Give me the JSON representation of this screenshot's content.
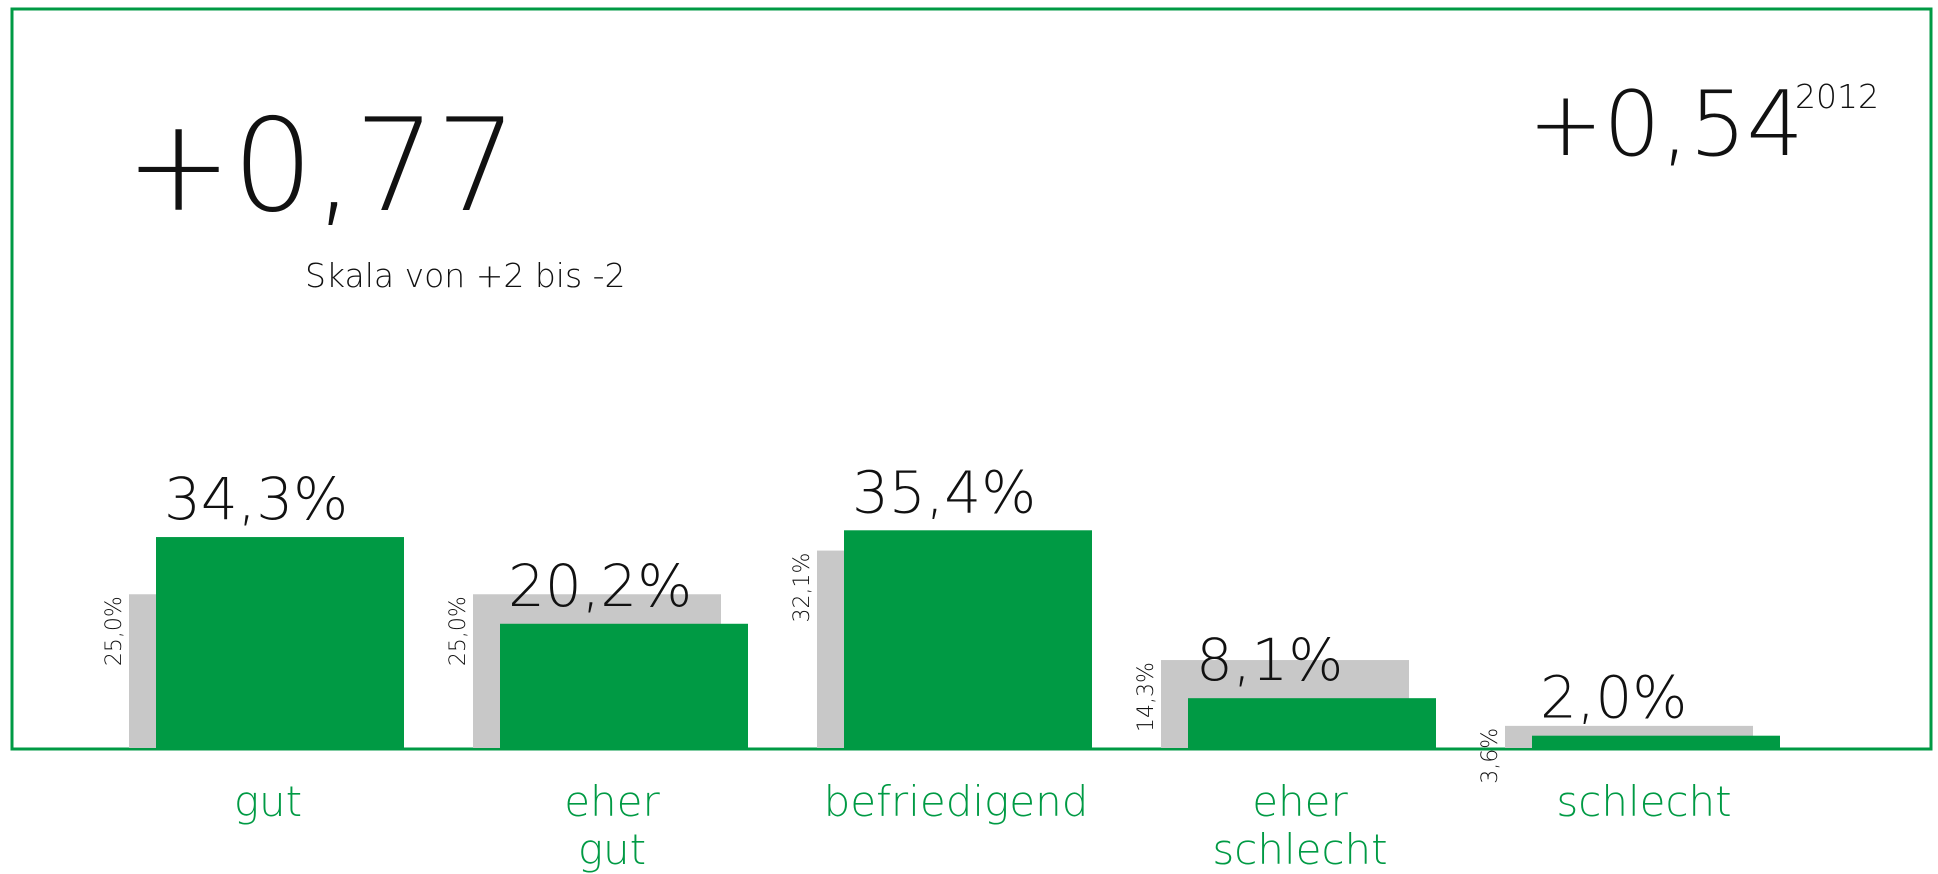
{
  "chart_data": {
    "type": "bar",
    "score": "+0,77",
    "subtitle": "Skala von +2 bis -2",
    "previous_score": "+0,54",
    "categories": [
      "gut",
      "eher gut",
      "befriedigend",
      "eher schlecht",
      "schlecht"
    ],
    "series": [
      {
        "name": "2012",
        "color": "#c8c8c8",
        "values": [
          25.0,
          25.0,
          32.1,
          14.3,
          3.6
        ],
        "value_labels": [
          "25,0%",
          "25,0%",
          "32,1%",
          "14,3%",
          "3,6%"
        ]
      },
      {
        "color": "#009a44",
        "values": [
          34.3,
          20.2,
          35.4,
          8.1,
          2.0
        ],
        "value_labels": [
          "34,3%",
          "20,2%",
          "35,4%",
          "8,1%",
          "2,0%"
        ]
      }
    ]
  }
}
